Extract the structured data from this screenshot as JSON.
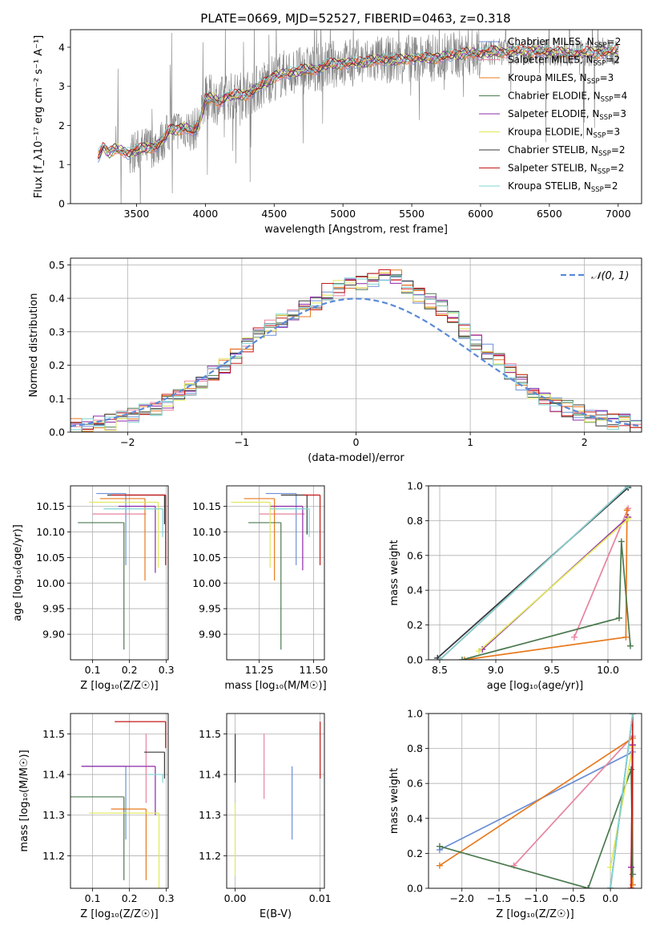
{
  "figure_title": "PLATE=0669, MJD=52527, FIBERID=0463, z=0.318",
  "colors": {
    "chabrier_miles": "#6b8fd6",
    "salpeter_miles": "#e8849e",
    "kroupa_miles": "#e87a1e",
    "chabrier_elodie": "#4c7a50",
    "salpeter_elodie": "#8e2aa8",
    "kroupa_elodie": "#e0e85a",
    "chabrier_stelib": "#3a3a3a",
    "salpeter_stelib": "#c61818",
    "kroupa_stelib": "#7fd6d6",
    "observed": "#808080",
    "normal": "#5b8ad8",
    "grid": "#b0b0b0"
  },
  "chart_data": [
    {
      "id": "spectrum",
      "type": "line",
      "title": "PLATE=0669, MJD=52527, FIBERID=0463, z=0.318",
      "xlabel": "wavelength [Angstrom, rest frame]",
      "ylabel": "Flux [f_λ10⁻¹⁷ erg cm⁻² s⁻¹ A⁻¹]",
      "xlim": [
        3020,
        7170
      ],
      "ylim": [
        0,
        4.45
      ],
      "xticks": [
        "3500",
        "4000",
        "4500",
        "5000",
        "5500",
        "6000",
        "6500",
        "7000"
      ],
      "yticks": [
        "0",
        "1",
        "2",
        "3",
        "4"
      ],
      "grid": false,
      "legend_position": "right",
      "legend": [
        {
          "label": "Chabrier MILES, N",
          "sub": "SSP",
          "tail": "=2",
          "color_key": "chabrier_miles"
        },
        {
          "label": "Salpeter MILES, N",
          "sub": "SSP",
          "tail": "=2",
          "color_key": "salpeter_miles"
        },
        {
          "label": "Kroupa MILES, N",
          "sub": "SSP",
          "tail": "=3",
          "color_key": "kroupa_miles"
        },
        {
          "label": "Chabrier ELODIE, N",
          "sub": "SSP",
          "tail": "=4",
          "color_key": "chabrier_elodie"
        },
        {
          "label": "Salpeter ELODIE, N",
          "sub": "SSP",
          "tail": "=3",
          "color_key": "salpeter_elodie"
        },
        {
          "label": "Kroupa ELODIE, N",
          "sub": "SSP",
          "tail": "=3",
          "color_key": "kroupa_elodie"
        },
        {
          "label": "Chabrier STELIB, N",
          "sub": "SSP",
          "tail": "=2",
          "color_key": "chabrier_stelib"
        },
        {
          "label": "Salpeter STELIB, N",
          "sub": "SSP",
          "tail": "=2",
          "color_key": "salpeter_stelib"
        },
        {
          "label": "Kroupa STELIB, N",
          "sub": "SSP",
          "tail": "=2",
          "color_key": "kroupa_stelib"
        }
      ],
      "model_continuum": {
        "x": [
          3220,
          3260,
          3300,
          3350,
          3400,
          3450,
          3500,
          3550,
          3600,
          3650,
          3700,
          3750,
          3800,
          3850,
          3900,
          3950,
          4000,
          4050,
          4100,
          4150,
          4200,
          4300,
          4400,
          4500,
          4600,
          4700,
          4800,
          4900,
          5000,
          5100,
          5200,
          5300,
          5400,
          5500,
          5600,
          5700,
          5800,
          5900,
          6000,
          6200,
          6400,
          6600,
          6800,
          7000
        ],
        "y": [
          1.2,
          1.45,
          1.3,
          1.4,
          1.35,
          1.3,
          1.35,
          1.4,
          1.45,
          1.5,
          1.65,
          1.9,
          1.9,
          1.95,
          1.85,
          2.0,
          2.65,
          2.7,
          2.6,
          2.75,
          2.75,
          2.8,
          3.0,
          3.25,
          3.35,
          3.4,
          3.45,
          3.55,
          3.6,
          3.6,
          3.65,
          3.7,
          3.65,
          3.75,
          3.7,
          3.75,
          3.8,
          3.85,
          3.85,
          3.9,
          3.9,
          3.85,
          3.85,
          3.9
        ]
      }
    },
    {
      "id": "residuals",
      "type": "line",
      "xlabel": "(data-model)/error",
      "ylabel": "Normed distribution",
      "xlim": [
        -2.5,
        2.5
      ],
      "ylim": [
        0,
        0.52
      ],
      "xticks": [
        "−2",
        "−1",
        "0",
        "1",
        "2"
      ],
      "yticks": [
        "0.0",
        "0.1",
        "0.2",
        "0.3",
        "0.4",
        "0.5"
      ],
      "grid": true,
      "legend_position": "top-right",
      "legend_label": "𝒩(0, 1)",
      "bin_width": 0.1,
      "bin_start": -2.5,
      "hist_heights": [
        0.02,
        0.02,
        0.03,
        0.03,
        0.04,
        0.05,
        0.06,
        0.07,
        0.09,
        0.11,
        0.13,
        0.15,
        0.18,
        0.2,
        0.23,
        0.26,
        0.29,
        0.31,
        0.33,
        0.35,
        0.37,
        0.39,
        0.42,
        0.43,
        0.44,
        0.45,
        0.46,
        0.47,
        0.46,
        0.44,
        0.41,
        0.39,
        0.37,
        0.34,
        0.3,
        0.27,
        0.24,
        0.21,
        0.18,
        0.15,
        0.12,
        0.1,
        0.08,
        0.07,
        0.06,
        0.05,
        0.04,
        0.03,
        0.03,
        0.02
      ]
    },
    {
      "id": "age-vs-Z",
      "type": "scatter",
      "xlabel": "Z [log₁₀(Z/Z☉)]",
      "ylabel": "age  [log₁₀(age/yr)]",
      "xlim": [
        0.04,
        0.305
      ],
      "ylim": [
        9.85,
        10.19
      ],
      "xticks": [
        "0.1",
        "0.2",
        "0.3"
      ],
      "yticks": [
        "9.90",
        "9.95",
        "10.00",
        "10.05",
        "10.10",
        "10.15"
      ],
      "grid": true,
      "points": [
        {
          "x": 0.19,
          "y": 10.175,
          "xlo": 0.11,
          "yhi": 10.175,
          "ylo": 10.035,
          "color_key": "chabrier_miles"
        },
        {
          "x": 0.245,
          "y": 10.135,
          "xlo": 0.1,
          "ylo": 10.135,
          "color_key": "salpeter_miles"
        },
        {
          "x": 0.242,
          "y": 10.165,
          "xlo": 0.12,
          "ylo": 10.005,
          "color_key": "kroupa_miles"
        },
        {
          "x": 0.185,
          "y": 10.118,
          "xlo": 0.06,
          "ylo": 9.87,
          "color_key": "chabrier_elodie"
        },
        {
          "x": 0.27,
          "y": 10.15,
          "xlo": 0.17,
          "ylo": 10.02,
          "color_key": "salpeter_elodie"
        },
        {
          "x": 0.278,
          "y": 10.158,
          "xlo": 0.09,
          "ylo": 10.03,
          "color_key": "kroupa_elodie"
        },
        {
          "x": 0.295,
          "y": 10.172,
          "xlo": 0.14,
          "ylo": 10.115,
          "color_key": "chabrier_stelib"
        },
        {
          "x": 0.298,
          "y": 10.172,
          "xlo": 0.15,
          "ylo": 10.035,
          "color_key": "salpeter_stelib"
        },
        {
          "x": 0.29,
          "y": 10.145,
          "xlo": 0.13,
          "ylo": 10.09,
          "color_key": "kroupa_stelib"
        }
      ]
    },
    {
      "id": "age-vs-mass",
      "type": "scatter",
      "xlabel": "mass [log₁₀(M/M☉)]",
      "ylabel": "",
      "xlim": [
        11.1,
        11.55
      ],
      "ylim": [
        9.85,
        10.19
      ],
      "xticks": [
        "11.25",
        "11.50"
      ],
      "yticks": [
        "9.90",
        "9.95",
        "10.00",
        "10.05",
        "10.10",
        "10.15"
      ],
      "grid": true,
      "points": [
        {
          "x": 11.42,
          "y": 10.175,
          "xlo": 11.28,
          "ylo": 10.035,
          "color_key": "chabrier_miles"
        },
        {
          "x": 11.46,
          "y": 10.135,
          "xlo": 11.25,
          "ylo": 10.135,
          "color_key": "salpeter_miles"
        },
        {
          "x": 11.32,
          "y": 10.165,
          "xlo": 11.18,
          "ylo": 10.005,
          "color_key": "kroupa_miles"
        },
        {
          "x": 11.35,
          "y": 10.118,
          "xlo": 11.2,
          "ylo": 9.87,
          "color_key": "chabrier_elodie"
        },
        {
          "x": 11.45,
          "y": 10.15,
          "xlo": 11.3,
          "ylo": 10.025,
          "color_key": "salpeter_elodie"
        },
        {
          "x": 11.3,
          "y": 10.158,
          "xlo": 11.12,
          "ylo": 10.03,
          "color_key": "kroupa_elodie"
        },
        {
          "x": 11.47,
          "y": 10.172,
          "xlo": 11.35,
          "ylo": 10.095,
          "color_key": "chabrier_stelib"
        },
        {
          "x": 11.53,
          "y": 10.172,
          "xlo": 11.45,
          "ylo": 10.035,
          "color_key": "salpeter_stelib"
        },
        {
          "x": 11.48,
          "y": 10.145,
          "xlo": 11.3,
          "ylo": 10.09,
          "color_key": "kroupa_stelib"
        }
      ]
    },
    {
      "id": "weight-vs-age",
      "type": "line",
      "xlabel": "age  [log₁₀(age/yr)]",
      "ylabel": "mass weight",
      "xlim": [
        8.4,
        10.3
      ],
      "ylim": [
        0,
        1.0
      ],
      "xticks": [
        "8.5",
        "9.0",
        "9.5",
        "10.0"
      ],
      "yticks": [
        "0.0",
        "0.2",
        "0.4",
        "0.6",
        "0.8",
        "1.0"
      ],
      "grid": true,
      "series": [
        {
          "color_key": "chabrier_miles",
          "x": [
            8.48,
            10.18
          ],
          "y": [
            0.01,
            0.99
          ]
        },
        {
          "color_key": "salpeter_miles",
          "x": [
            9.7,
            10.18
          ],
          "y": [
            0.13,
            0.87
          ]
        },
        {
          "color_key": "kroupa_miles",
          "x": [
            8.72,
            10.16,
            10.17
          ],
          "y": [
            0.0,
            0.13,
            0.86
          ]
        },
        {
          "color_key": "chabrier_elodie",
          "x": [
            8.7,
            10.1,
            10.12,
            10.2
          ],
          "y": [
            0.0,
            0.24,
            0.68,
            0.08
          ]
        },
        {
          "color_key": "salpeter_elodie",
          "x": [
            8.88,
            10.18
          ],
          "y": [
            0.06,
            0.82
          ]
        },
        {
          "color_key": "kroupa_elodie",
          "x": [
            8.85,
            10.18
          ],
          "y": [
            0.05,
            0.81
          ]
        },
        {
          "color_key": "chabrier_stelib",
          "x": [
            8.48,
            10.18
          ],
          "y": [
            0.01,
            0.99
          ]
        },
        {
          "color_key": "salpeter_stelib",
          "x": [
            8.5,
            10.18
          ],
          "y": [
            0.0,
            1.0
          ]
        },
        {
          "color_key": "kroupa_stelib",
          "x": [
            8.5,
            10.18
          ],
          "y": [
            0.0,
            1.0
          ]
        }
      ]
    },
    {
      "id": "mass-vs-Z",
      "type": "scatter",
      "xlabel": "Z [log₁₀(Z/Z☉)]",
      "ylabel": "mass [log₁₀(M/M☉)]",
      "xlim": [
        0.04,
        0.305
      ],
      "ylim": [
        11.12,
        11.55
      ],
      "xticks": [
        "0.1",
        "0.2",
        "0.3"
      ],
      "yticks": [
        "11.2",
        "11.3",
        "11.4",
        "11.5"
      ],
      "grid": true,
      "points": [
        {
          "x": 0.19,
          "y": 11.42,
          "xlo": 0.07,
          "ylo": 11.24,
          "color_key": "chabrier_miles"
        },
        {
          "x": 0.245,
          "y": 11.5,
          "xlo": 0.245,
          "ylo": 11.33,
          "color_key": "salpeter_miles"
        },
        {
          "x": 0.245,
          "y": 11.315,
          "xlo": 0.15,
          "ylo": 11.14,
          "color_key": "kroupa_miles"
        },
        {
          "x": 0.185,
          "y": 11.345,
          "xlo": 0.04,
          "ylo": 11.14,
          "color_key": "chabrier_elodie"
        },
        {
          "x": 0.27,
          "y": 11.42,
          "xlo": 0.07,
          "ylo": 11.3,
          "color_key": "salpeter_elodie"
        },
        {
          "x": 0.28,
          "y": 11.305,
          "xlo": 0.09,
          "ylo": 11.12,
          "color_key": "kroupa_elodie"
        },
        {
          "x": 0.295,
          "y": 11.455,
          "xlo": 0.24,
          "ylo": 11.39,
          "color_key": "chabrier_stelib"
        },
        {
          "x": 0.298,
          "y": 11.53,
          "xlo": 0.16,
          "ylo": 11.465,
          "color_key": "salpeter_stelib"
        },
        {
          "x": 0.29,
          "y": 11.4,
          "xlo": 0.25,
          "ylo": 11.38,
          "color_key": "kroupa_stelib"
        }
      ]
    },
    {
      "id": "mass-vs-EBV",
      "type": "scatter",
      "xlabel": "E(B-V)",
      "ylabel": "",
      "xlim": [
        -0.001,
        0.0105
      ],
      "ylim": [
        11.12,
        11.55
      ],
      "xticks": [
        "0.00",
        "0.01"
      ],
      "yticks": [
        "11.2",
        "11.3",
        "11.4",
        "11.5"
      ],
      "grid": true,
      "points": [
        {
          "x": 0.0,
          "ylo": 11.38,
          "yhi": 11.5,
          "color_key": "chabrier_stelib"
        },
        {
          "x": 0.0,
          "ylo": 11.15,
          "yhi": 11.33,
          "color_key": "kroupa_elodie"
        },
        {
          "x": 0.0034,
          "ylo": 11.34,
          "yhi": 11.5,
          "color_key": "salpeter_miles"
        },
        {
          "x": 0.0067,
          "ylo": 11.24,
          "yhi": 11.42,
          "color_key": "chabrier_miles"
        },
        {
          "x": 0.01,
          "ylo": 11.39,
          "yhi": 11.53,
          "color_key": "salpeter_stelib"
        }
      ]
    },
    {
      "id": "weight-vs-Z",
      "type": "line",
      "xlabel": "Z [log₁₀(Z/Z☉)]",
      "ylabel": "mass weight",
      "xlim": [
        -2.45,
        0.42
      ],
      "ylim": [
        0,
        1.0
      ],
      "xticks": [
        "−2.0",
        "−1.5",
        "−1.0",
        "−0.5",
        "0.0"
      ],
      "yticks": [
        "0.0",
        "0.2",
        "0.4",
        "0.6",
        "0.8",
        "1.0"
      ],
      "grid": true,
      "series": [
        {
          "color_key": "chabrier_miles",
          "x": [
            -2.3,
            0.3
          ],
          "y": [
            0.22,
            0.78
          ]
        },
        {
          "color_key": "salpeter_miles",
          "x": [
            -1.3,
            0.3
          ],
          "y": [
            0.13,
            0.87
          ]
        },
        {
          "color_key": "kroupa_miles",
          "x": [
            -2.3,
            0.3,
            0.3
          ],
          "y": [
            0.13,
            0.86,
            0.02
          ]
        },
        {
          "color_key": "chabrier_elodie",
          "x": [
            -2.3,
            -0.3,
            0.28,
            0.3
          ],
          "y": [
            0.24,
            0.0,
            0.68,
            0.08
          ]
        },
        {
          "color_key": "salpeter_elodie",
          "x": [
            0.28,
            0.3
          ],
          "y": [
            0.12,
            0.82
          ]
        },
        {
          "color_key": "kroupa_elodie",
          "x": [
            0.0,
            0.3
          ],
          "y": [
            0.12,
            0.81
          ]
        },
        {
          "color_key": "chabrier_stelib",
          "x": [
            0.0,
            0.3
          ],
          "y": [
            0.0,
            1.0
          ]
        },
        {
          "color_key": "salpeter_stelib",
          "x": [
            0.28,
            0.3
          ],
          "y": [
            0.0,
            1.0
          ]
        },
        {
          "color_key": "kroupa_stelib",
          "x": [
            0.0,
            0.3
          ],
          "y": [
            0.0,
            1.0
          ]
        }
      ]
    }
  ]
}
